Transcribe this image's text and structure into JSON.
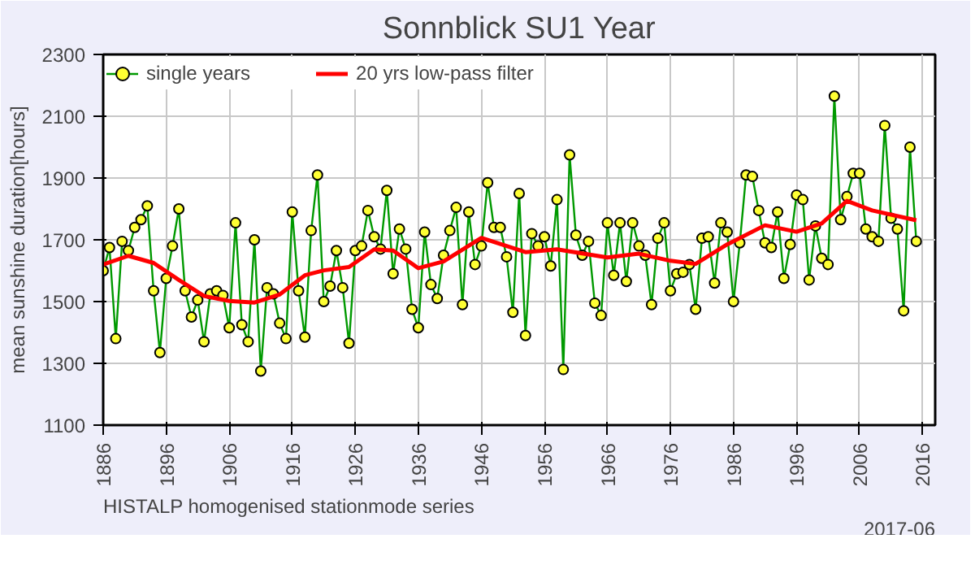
{
  "chart_data": {
    "type": "line",
    "title": "Sonnblick SU1 Year",
    "ylabel": "mean sunshine duration[hours]",
    "xlim": [
      1886,
      2018
    ],
    "ylim": [
      1100,
      2300
    ],
    "xticks": [
      1886,
      1896,
      1906,
      1916,
      1926,
      1936,
      1946,
      1956,
      1966,
      1976,
      1986,
      1996,
      2006,
      2016
    ],
    "yticks": [
      1100,
      1300,
      1500,
      1700,
      1900,
      2100,
      2300
    ],
    "grid": true,
    "legend": "top",
    "annotations": [
      "HISTALP homogenised stationmode series",
      "2017-06"
    ],
    "series": [
      {
        "name": "single years",
        "color": "#009900",
        "marker": "circle",
        "x": [
          1886,
          1887,
          1888,
          1889,
          1890,
          1891,
          1892,
          1893,
          1894,
          1895,
          1896,
          1897,
          1898,
          1899,
          1900,
          1901,
          1902,
          1903,
          1904,
          1905,
          1906,
          1907,
          1908,
          1909,
          1910,
          1911,
          1912,
          1913,
          1914,
          1915,
          1916,
          1917,
          1918,
          1919,
          1920,
          1921,
          1922,
          1923,
          1924,
          1925,
          1926,
          1927,
          1928,
          1929,
          1930,
          1931,
          1932,
          1933,
          1934,
          1935,
          1936,
          1937,
          1938,
          1939,
          1940,
          1941,
          1942,
          1943,
          1944,
          1945,
          1946,
          1947,
          1948,
          1949,
          1950,
          1951,
          1952,
          1953,
          1954,
          1955,
          1956,
          1957,
          1958,
          1959,
          1960,
          1961,
          1962,
          1963,
          1964,
          1965,
          1966,
          1967,
          1968,
          1969,
          1970,
          1971,
          1972,
          1973,
          1974,
          1975,
          1976,
          1977,
          1978,
          1979,
          1980,
          1981,
          1982,
          1983,
          1984,
          1985,
          1986,
          1987,
          1988,
          1989,
          1990,
          1991,
          1992,
          1993,
          1994,
          1995,
          1996,
          1997,
          1998,
          1999,
          2000,
          2001,
          2002,
          2003,
          2004,
          2005,
          2006,
          2007,
          2008,
          2009,
          2010,
          2011,
          2012,
          2013,
          2014,
          2015
        ],
        "values": [
          1600,
          1675,
          1380,
          1695,
          1665,
          1740,
          1765,
          1810,
          1535,
          1335,
          1575,
          1680,
          1800,
          1535,
          1450,
          1505,
          1370,
          1525,
          1535,
          1520,
          1415,
          1755,
          1425,
          1370,
          1700,
          1275,
          1545,
          1525,
          1430,
          1380,
          1790,
          1535,
          1385,
          1730,
          1910,
          1500,
          1550,
          1665,
          1545,
          1365,
          1665,
          1680,
          1795,
          1710,
          1670,
          1860,
          1590,
          1735,
          1670,
          1475,
          1415,
          1725,
          1555,
          1510,
          1650,
          1730,
          1805,
          1490,
          1790,
          1620,
          1680,
          1885,
          1740,
          1740,
          1645,
          1465,
          1850,
          1390,
          1720,
          1680,
          1710,
          1615,
          1830,
          1280,
          1975,
          1715,
          1650,
          1695,
          1495,
          1455,
          1755,
          1585,
          1755,
          1565,
          1755,
          1680,
          1650,
          1490,
          1705,
          1755,
          1535,
          1590,
          1595,
          1620,
          1475,
          1705,
          1710,
          1560,
          1755,
          1725,
          1500,
          1690,
          1910,
          1905,
          1795,
          1690,
          1675,
          1790,
          1575,
          1685,
          1845,
          1830,
          1570,
          1745,
          1640,
          1620,
          2165,
          1765,
          1840,
          1915,
          1915,
          1735,
          1710,
          1695,
          2070,
          1770,
          1735,
          1470,
          2000,
          1695
        ]
      },
      {
        "name": "20 yrs low-pass filter",
        "color": "#ff0000",
        "marker": "none",
        "x": [
          1886,
          1890,
          1894,
          1898,
          1902,
          1906,
          1910,
          1914,
          1918,
          1921,
          1925,
          1929,
          1932,
          1936,
          1940,
          1946,
          1953,
          1958,
          1966,
          1971,
          1976,
          1980,
          1985,
          1991,
          1996,
          2000,
          2004,
          2008,
          2015
        ],
        "values": [
          1620,
          1648,
          1625,
          1570,
          1518,
          1502,
          1497,
          1523,
          1585,
          1601,
          1612,
          1669,
          1665,
          1608,
          1630,
          1706,
          1660,
          1669,
          1643,
          1655,
          1632,
          1622,
          1685,
          1747,
          1726,
          1753,
          1826,
          1795,
          1763
        ]
      }
    ]
  }
}
